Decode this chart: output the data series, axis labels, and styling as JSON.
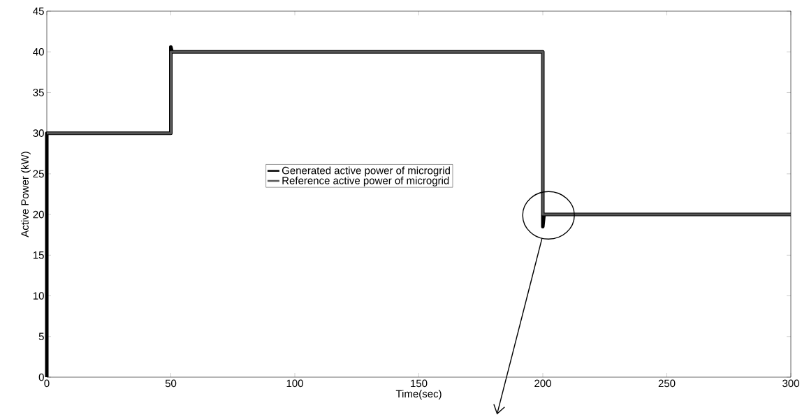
{
  "chart_data": {
    "type": "line",
    "xlabel": "Time(sec)",
    "ylabel": "Active Power (kW)",
    "xlim": [
      0,
      300
    ],
    "ylim": [
      0,
      45
    ],
    "xticks": [
      0,
      50,
      100,
      150,
      200,
      250,
      300
    ],
    "yticks": [
      0,
      5,
      10,
      15,
      20,
      25,
      30,
      35,
      40,
      45
    ],
    "grid": false,
    "legend": "center",
    "marker": "none",
    "line_style": "solid",
    "series": [
      {
        "name": "Generated active power of microgrid",
        "color": "#000000",
        "x": [
          0,
          0,
          50,
          50,
          50.5,
          200,
          200,
          200.5,
          300
        ],
        "values": [
          0,
          30,
          30,
          40.6,
          40,
          40,
          18.5,
          20,
          20
        ]
      },
      {
        "name": "Reference active power of microgrid",
        "color": "#555555",
        "x": [
          0,
          50,
          50,
          200,
          200,
          300
        ],
        "values": [
          30,
          30,
          40,
          40,
          20,
          20
        ]
      }
    ]
  }
}
